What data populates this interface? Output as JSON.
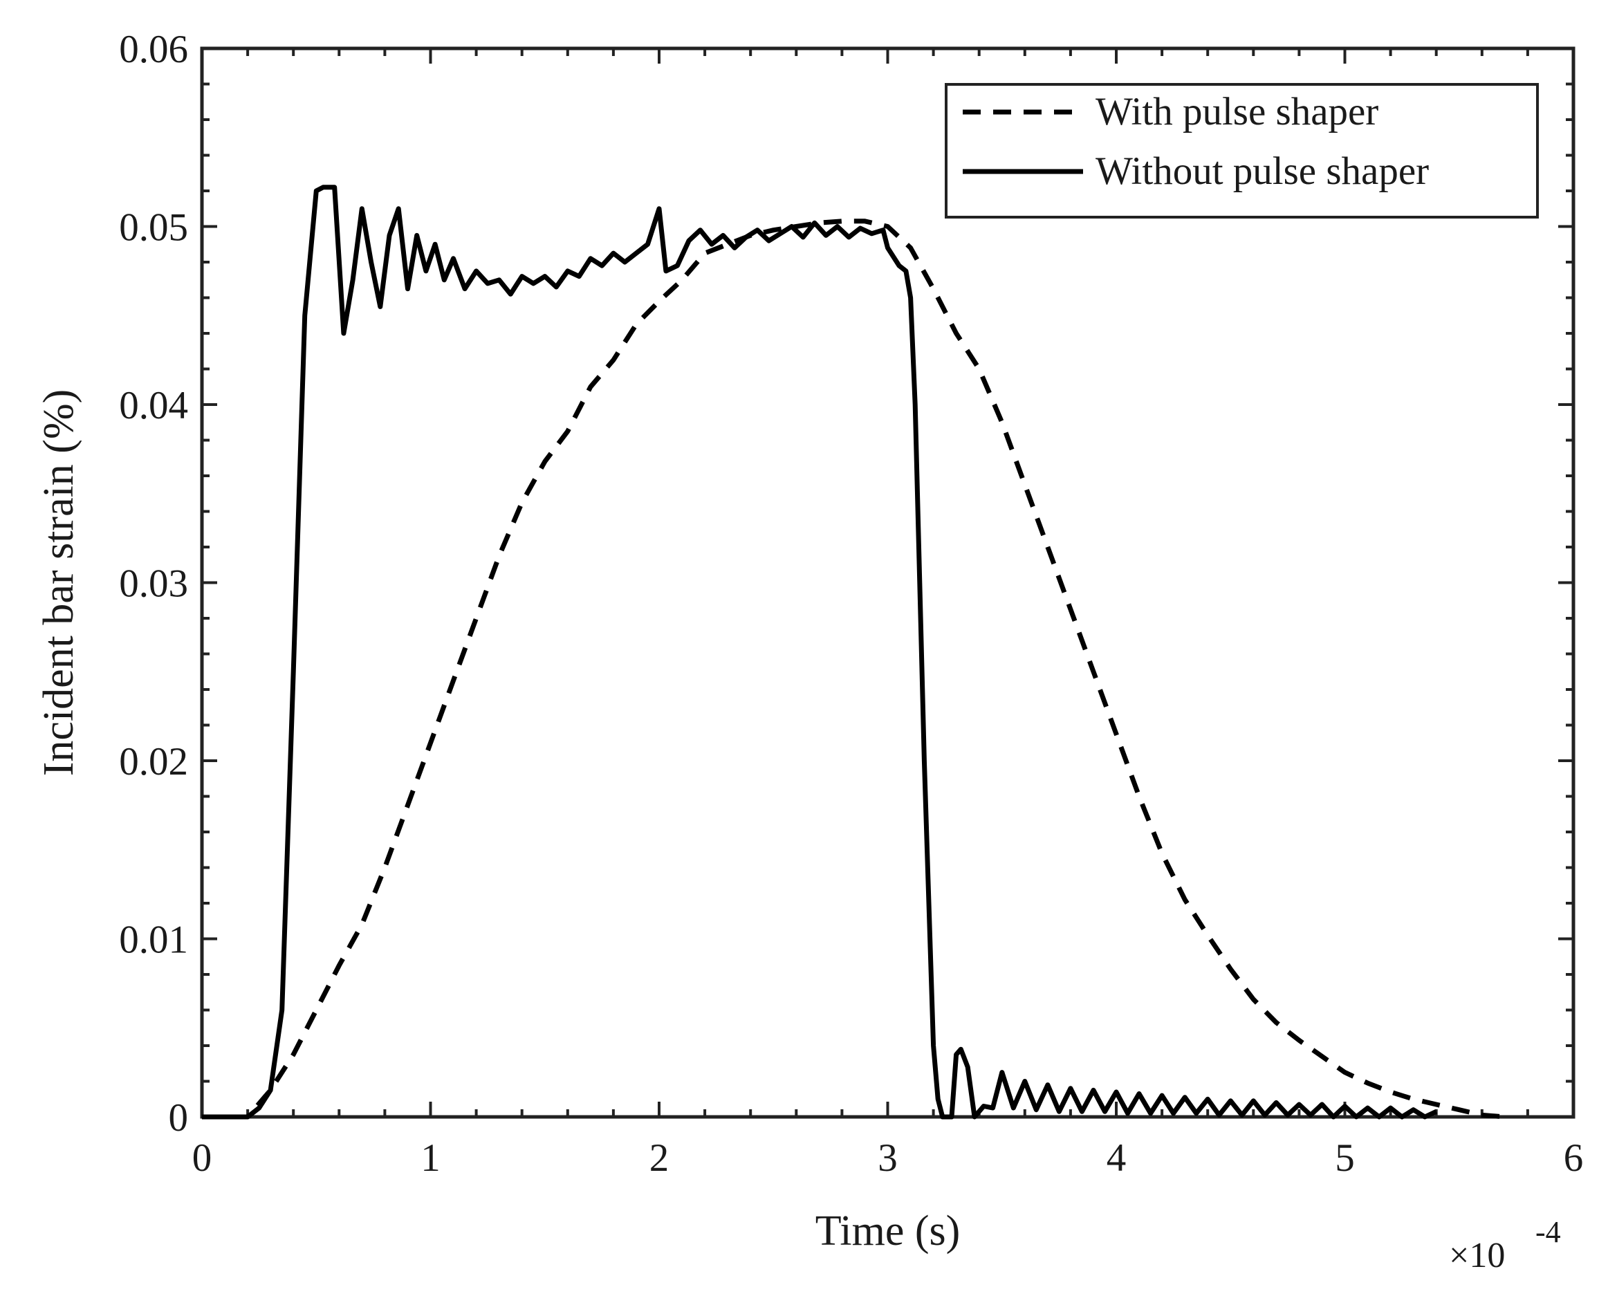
{
  "chart_data": {
    "type": "line",
    "title": "",
    "xlabel": "Time (s)",
    "ylabel": "Incident bar strain (%)",
    "x_multiplier": {
      "base": "×10",
      "exponent": "-4"
    },
    "xlim": [
      0,
      6
    ],
    "ylim": [
      0,
      0.06
    ],
    "xticks": [
      0,
      1,
      2,
      3,
      4,
      5,
      6
    ],
    "xtick_labels": [
      "0",
      "1",
      "2",
      "3",
      "4",
      "5",
      "6"
    ],
    "yticks": [
      0,
      0.01,
      0.02,
      0.03,
      0.04,
      0.05,
      0.06
    ],
    "ytick_labels": [
      "0",
      "0.01",
      "0.02",
      "0.03",
      "0.04",
      "0.05",
      "0.06"
    ],
    "grid": false,
    "legend_position": "top-right",
    "series": [
      {
        "name": "With pulse shaper",
        "style": "dashed",
        "color": "#000000",
        "x": [
          0.0,
          0.2,
          0.3,
          0.4,
          0.5,
          0.6,
          0.7,
          0.8,
          0.9,
          1.0,
          1.1,
          1.2,
          1.3,
          1.4,
          1.5,
          1.6,
          1.7,
          1.8,
          1.9,
          2.0,
          2.1,
          2.2,
          2.3,
          2.4,
          2.5,
          2.6,
          2.7,
          2.8,
          2.9,
          3.0,
          3.1,
          3.2,
          3.3,
          3.4,
          3.5,
          3.6,
          3.7,
          3.8,
          3.9,
          4.0,
          4.1,
          4.2,
          4.3,
          4.4,
          4.5,
          4.6,
          4.7,
          4.8,
          4.9,
          5.0,
          5.1,
          5.2,
          5.3,
          5.4,
          5.5,
          5.6,
          5.7
        ],
        "y": [
          0.0,
          0.0,
          0.0015,
          0.0035,
          0.006,
          0.0085,
          0.0108,
          0.014,
          0.0175,
          0.021,
          0.0245,
          0.028,
          0.0315,
          0.0345,
          0.0368,
          0.0385,
          0.041,
          0.0425,
          0.0445,
          0.0458,
          0.047,
          0.0485,
          0.049,
          0.0495,
          0.0498,
          0.05,
          0.0502,
          0.0503,
          0.0503,
          0.05,
          0.0488,
          0.0465,
          0.044,
          0.042,
          0.039,
          0.0355,
          0.032,
          0.0285,
          0.025,
          0.0215,
          0.018,
          0.0148,
          0.0122,
          0.0102,
          0.0083,
          0.0066,
          0.0053,
          0.0043,
          0.0034,
          0.0025,
          0.0019,
          0.0014,
          0.001,
          0.0007,
          0.0004,
          0.0001,
          0.0
        ]
      },
      {
        "name": "Without pulse shaper",
        "style": "solid",
        "color": "#000000",
        "x": [
          0.0,
          0.1,
          0.2,
          0.25,
          0.3,
          0.35,
          0.4,
          0.45,
          0.5,
          0.53,
          0.58,
          0.62,
          0.66,
          0.7,
          0.74,
          0.78,
          0.82,
          0.86,
          0.9,
          0.94,
          0.98,
          1.02,
          1.06,
          1.1,
          1.15,
          1.2,
          1.25,
          1.3,
          1.35,
          1.4,
          1.45,
          1.5,
          1.55,
          1.6,
          1.65,
          1.7,
          1.75,
          1.8,
          1.85,
          1.9,
          1.95,
          2.0,
          2.03,
          2.08,
          2.13,
          2.18,
          2.23,
          2.28,
          2.33,
          2.38,
          2.43,
          2.48,
          2.53,
          2.58,
          2.63,
          2.68,
          2.73,
          2.78,
          2.83,
          2.88,
          2.93,
          2.98,
          3.0,
          3.05,
          3.08,
          3.1,
          3.12,
          3.14,
          3.16,
          3.18,
          3.2,
          3.22,
          3.24,
          3.26,
          3.28,
          3.3,
          3.32,
          3.35,
          3.38,
          3.42,
          3.46,
          3.5,
          3.55,
          3.6,
          3.65,
          3.7,
          3.75,
          3.8,
          3.85,
          3.9,
          3.95,
          4.0,
          4.05,
          4.1,
          4.15,
          4.2,
          4.25,
          4.3,
          4.35,
          4.4,
          4.45,
          4.5,
          4.55,
          4.6,
          4.65,
          4.7,
          4.75,
          4.8,
          4.85,
          4.9,
          4.95,
          5.0,
          5.05,
          5.1,
          5.15,
          5.2,
          5.25,
          5.3,
          5.35,
          5.4
        ],
        "y": [
          0.0,
          0.0,
          0.0,
          0.0005,
          0.0015,
          0.006,
          0.025,
          0.045,
          0.052,
          0.0522,
          0.0522,
          0.044,
          0.047,
          0.051,
          0.048,
          0.0455,
          0.0495,
          0.051,
          0.0465,
          0.0495,
          0.0475,
          0.049,
          0.047,
          0.0482,
          0.0465,
          0.0475,
          0.0468,
          0.047,
          0.0462,
          0.0472,
          0.0468,
          0.0472,
          0.0466,
          0.0475,
          0.0472,
          0.0482,
          0.0478,
          0.0485,
          0.048,
          0.0485,
          0.049,
          0.051,
          0.0475,
          0.0478,
          0.0492,
          0.0498,
          0.049,
          0.0495,
          0.0488,
          0.0494,
          0.0498,
          0.0492,
          0.0496,
          0.05,
          0.0494,
          0.0502,
          0.0495,
          0.05,
          0.0494,
          0.0499,
          0.0496,
          0.0498,
          0.0488,
          0.0478,
          0.0475,
          0.046,
          0.04,
          0.03,
          0.02,
          0.012,
          0.004,
          0.001,
          0.0,
          0.0,
          0.0,
          0.0035,
          0.0038,
          0.0028,
          0.0,
          0.0006,
          0.0005,
          0.0025,
          0.0005,
          0.002,
          0.0004,
          0.0018,
          0.0003,
          0.0016,
          0.0003,
          0.0015,
          0.0003,
          0.0014,
          0.0002,
          0.0013,
          0.0002,
          0.0012,
          0.0002,
          0.0011,
          0.0002,
          0.001,
          0.0001,
          0.0009,
          0.0001,
          0.0009,
          0.0001,
          0.0008,
          0.0001,
          0.0007,
          0.0001,
          0.0007,
          0.0,
          0.0006,
          0.0,
          0.0005,
          0.0,
          0.0005,
          0.0,
          0.0004,
          0.0,
          0.0003
        ]
      }
    ]
  }
}
